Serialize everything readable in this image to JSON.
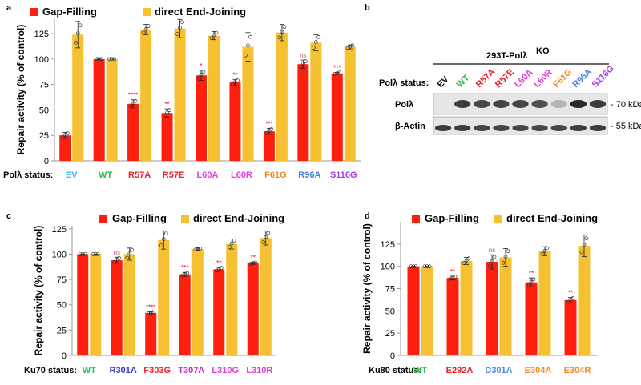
{
  "colors": {
    "gap_filling": "#ff1f0f",
    "end_joining": "#f5c133",
    "sig_red": "#e8001c",
    "sig_ns": "#d05070",
    "axis": "#9a9a9a"
  },
  "legend": {
    "gap_filling": "Gap-Filling",
    "end_joining": "direct End-Joining"
  },
  "chart_data": [
    {
      "panel": "a",
      "type": "bar",
      "ylabel": "Repair activity (% of control)",
      "ylim": [
        0,
        140
      ],
      "yticks": [
        0,
        25,
        50,
        75,
        100,
        125
      ],
      "status_label": "Polλ status:",
      "categories": [
        "EV",
        "WT",
        "R57A",
        "R57E",
        "L60A",
        "L60R",
        "F61G",
        "R96A",
        "S116G"
      ],
      "category_colors": [
        "#3fb7e8",
        "#2ebc52",
        "#e8202a",
        "#e8202a",
        "#e040d8",
        "#e040d8",
        "#f08c1e",
        "#4a7ee0",
        "#a040e0"
      ],
      "series": [
        {
          "name": "Gap-Filling",
          "values": [
            25,
            100,
            56,
            47,
            84,
            77,
            29,
            95,
            86
          ],
          "err": [
            3,
            0,
            4,
            4,
            5,
            3,
            3,
            4,
            1
          ]
        },
        {
          "name": "direct End-Joining",
          "values": [
            124,
            100,
            129,
            130,
            123,
            112,
            126,
            116,
            112
          ],
          "err": [
            13,
            0,
            5,
            9,
            4,
            14,
            8,
            8,
            2
          ]
        }
      ],
      "significance": [
        "",
        "",
        "****",
        "**",
        "*",
        "**",
        "***",
        "ns",
        "***"
      ]
    },
    {
      "panel": "c",
      "type": "bar",
      "ylabel": "Repair activity (% of control)",
      "ylim": [
        0,
        128
      ],
      "yticks": [
        0,
        25,
        50,
        75,
        100,
        125
      ],
      "status_label": "Ku70 status:",
      "categories": [
        "WT",
        "R301A",
        "F303G",
        "T307A",
        "L310G",
        "L310R"
      ],
      "category_colors": [
        "#2ebc52",
        "#3a3ad0",
        "#e8202a",
        "#c030c8",
        "#e040d8",
        "#e040d8"
      ],
      "series": [
        {
          "name": "Gap-Filling",
          "values": [
            100,
            94,
            42,
            80,
            85,
            91
          ],
          "err": [
            0,
            3,
            1,
            2,
            2,
            1
          ]
        },
        {
          "name": "direct End-Joining",
          "values": [
            100,
            100,
            114,
            105,
            110,
            116
          ],
          "err": [
            0,
            6,
            9,
            1,
            5,
            7
          ]
        }
      ],
      "significance": [
        "",
        "ns",
        "****",
        "***",
        "**",
        "**"
      ]
    },
    {
      "panel": "d",
      "type": "bar",
      "ylabel": "Repair activity (% of control)",
      "ylim": [
        0,
        150
      ],
      "yticks": [
        0,
        25,
        50,
        75,
        100,
        125
      ],
      "status_label": "Ku80 status:",
      "categories": [
        "WT",
        "E292A",
        "D301A",
        "E304A",
        "E304R"
      ],
      "category_colors": [
        "#2ebc52",
        "#e8202a",
        "#4a8ee0",
        "#f08c1e",
        "#f08c1e"
      ],
      "series": [
        {
          "name": "Gap-Filling",
          "values": [
            100,
            87,
            105,
            82,
            62
          ],
          "err": [
            0,
            2,
            8,
            5,
            3
          ]
        },
        {
          "name": "direct End-Joining",
          "values": [
            100,
            106,
            110,
            117,
            123
          ],
          "err": [
            0,
            4,
            10,
            5,
            12
          ]
        }
      ],
      "significance": [
        "",
        "**",
        "ns",
        "**",
        "**"
      ]
    }
  ],
  "blot": {
    "panel": "b",
    "cell_line_prefix": "293T-Polλ",
    "cell_line_superscript": "KO",
    "status_label": "Polλ status:",
    "lanes": [
      "EV",
      "WT",
      "R57A",
      "R57E",
      "L60A",
      "L60R",
      "F61G",
      "R96A",
      "S116G"
    ],
    "lane_colors": [
      "#111111",
      "#2ebc52",
      "#e8202a",
      "#e8202a",
      "#e040d8",
      "#e040d8",
      "#f08c1e",
      "#4a7ee0",
      "#a040e0"
    ],
    "rows": [
      {
        "label": "Polλ",
        "marker": "- 70 kDa",
        "intensities": [
          0,
          0.85,
          0.8,
          0.8,
          0.8,
          0.75,
          0.25,
          0.95,
          0.85
        ]
      },
      {
        "label": "β-Actin",
        "marker": "- 55 kDa",
        "intensities": [
          0.85,
          0.85,
          0.8,
          0.8,
          0.8,
          0.8,
          0.8,
          0.85,
          0.85
        ]
      }
    ]
  }
}
